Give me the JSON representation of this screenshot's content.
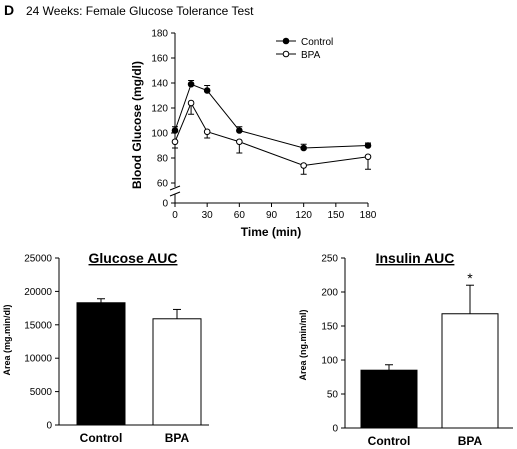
{
  "figure": {
    "panel_label": "D",
    "title": "24 Weeks: Female Glucose Tolerance Test"
  },
  "colors": {
    "control": "#000000",
    "bpa": "#ffffff",
    "axis": "#000000"
  },
  "chart_data": [
    {
      "type": "line",
      "title": "",
      "xlabel": "Time (min)",
      "ylabel": "Blood Glucose (mg/dl)",
      "x": [
        0,
        15,
        30,
        60,
        120,
        180
      ],
      "xticks": [
        "0",
        "30",
        "60",
        "90",
        "120",
        "150",
        "180"
      ],
      "yticks": [
        "0",
        "60",
        "80",
        "100",
        "120",
        "140",
        "160",
        "180"
      ],
      "ylim": [
        60,
        180
      ],
      "axis_break": true,
      "legend_position": "top-right",
      "series": [
        {
          "name": "Control",
          "marker": "filled-circle",
          "values": [
            102,
            139,
            134,
            102,
            88,
            90
          ],
          "err": [
            3,
            3,
            4,
            3,
            3,
            2
          ]
        },
        {
          "name": "BPA",
          "marker": "open-circle",
          "values": [
            93,
            124,
            101,
            93,
            74,
            81
          ],
          "err": [
            5,
            9,
            5,
            9,
            7,
            10
          ]
        }
      ]
    },
    {
      "type": "bar",
      "title": "Glucose AUC",
      "ylabel": "Area (mg.min/dl)",
      "categories": [
        "Control",
        "BPA"
      ],
      "values": [
        18300,
        15900
      ],
      "err": [
        600,
        1400
      ],
      "yticks": [
        "0",
        "5000",
        "10000",
        "15000",
        "20000",
        "25000"
      ],
      "ylim": [
        0,
        25000
      ]
    },
    {
      "type": "bar",
      "title": "Insulin AUC",
      "ylabel": "Area (ng.min/ml)",
      "categories": [
        "Control",
        "BPA"
      ],
      "values": [
        85,
        168
      ],
      "err": [
        8,
        42
      ],
      "annotations": [
        "",
        "*"
      ],
      "yticks": [
        "0",
        "50",
        "100",
        "150",
        "200",
        "250"
      ],
      "ylim": [
        0,
        250
      ]
    }
  ]
}
